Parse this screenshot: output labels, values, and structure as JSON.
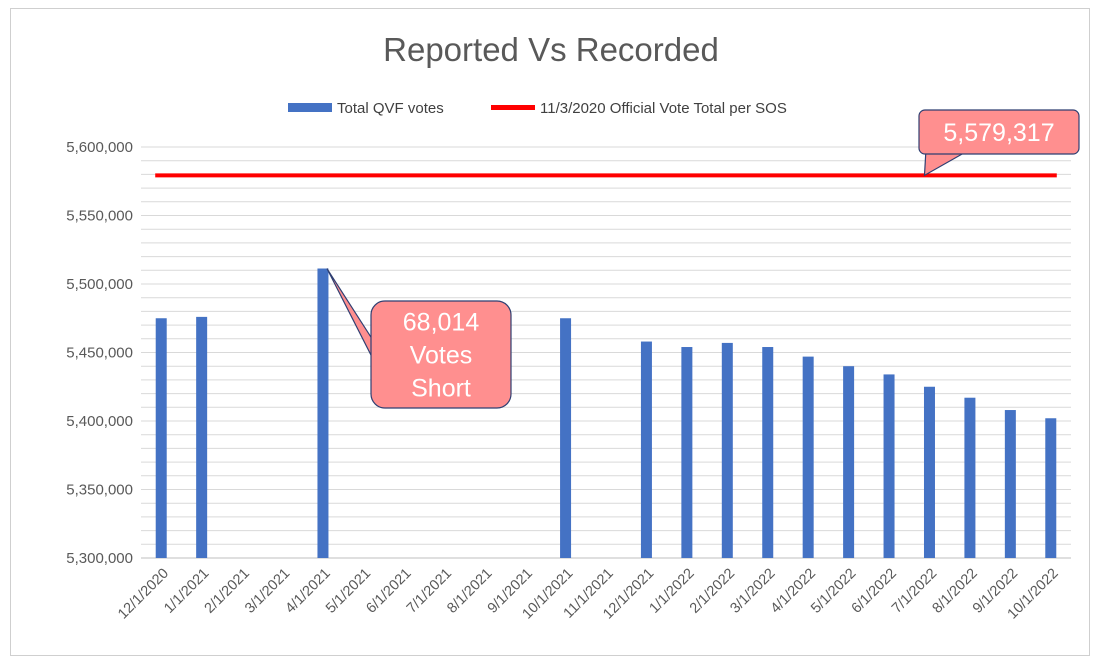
{
  "chart_data": {
    "type": "bar",
    "title": "Reported Vs Recorded",
    "xlabel": "",
    "ylabel": "",
    "ylim": [
      5300000,
      5600000
    ],
    "yticks": [
      "5,300,000",
      "5,350,000",
      "5,400,000",
      "5,450,000",
      "5,500,000",
      "5,550,000",
      "5,600,000"
    ],
    "categories": [
      "12/1/2020",
      "1/1/2021",
      "2/1/2021",
      "3/1/2021",
      "4/1/2021",
      "5/1/2021",
      "6/1/2021",
      "7/1/2021",
      "8/1/2021",
      "9/1/2021",
      "10/1/2021",
      "11/1/2021",
      "12/1/2021",
      "1/1/2022",
      "2/1/2022",
      "3/1/2022",
      "4/1/2022",
      "5/1/2022",
      "6/1/2022",
      "7/1/2022",
      "8/1/2022",
      "9/1/2022",
      "10/1/2022"
    ],
    "series": [
      {
        "name": "Total QVF votes",
        "type": "bar",
        "color": "#4472C4",
        "values": [
          5475000,
          5476000,
          null,
          null,
          5511303,
          null,
          null,
          null,
          null,
          null,
          5475000,
          null,
          5458000,
          5454000,
          5457000,
          5454000,
          5447000,
          5440000,
          5434000,
          5425000,
          5417000,
          5408000,
          5402000
        ]
      },
      {
        "name": "11/3/2020 Official Vote Total per SOS",
        "type": "line",
        "color": "#FF0000",
        "value": 5579317
      }
    ],
    "annotations": [
      {
        "lines": [
          "5,579,317"
        ],
        "target": "11/3/2020 Official Vote Total per SOS",
        "at_category": "7/1/2022"
      },
      {
        "lines": [
          "68,014",
          "Votes",
          "Short"
        ],
        "target": "Total QVF votes",
        "at_category": "4/1/2021"
      }
    ],
    "grid": true,
    "legend": "top-center"
  },
  "colors": {
    "bar": "#4472C4",
    "line": "#FF0000",
    "callout_fill": "#FF8F8F",
    "callout_border": "#2F3F72",
    "grid": "#D9D9D9",
    "text": "#595959"
  }
}
